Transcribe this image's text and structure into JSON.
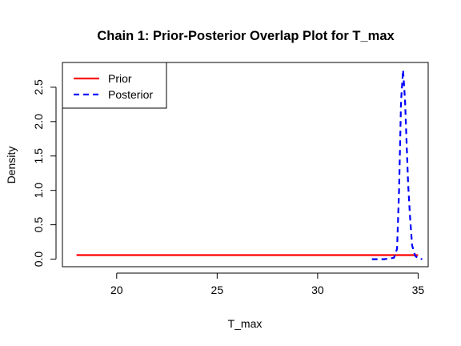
{
  "chart_data": {
    "type": "line",
    "title": "Chain 1: Prior-Posterior Overlap Plot for T_max",
    "xlabel": "T_max",
    "ylabel": "Density",
    "xlim": [
      17.3,
      35.5
    ],
    "ylim": [
      -0.11,
      2.86
    ],
    "x_ticks": [
      20,
      25,
      30,
      35
    ],
    "y_ticks": [
      0.0,
      0.5,
      1.0,
      1.5,
      2.0,
      2.5
    ],
    "x_tick_labels": [
      "20",
      "25",
      "30",
      "35"
    ],
    "y_tick_labels": [
      "0.0",
      "0.5",
      "1.0",
      "1.5",
      "2.0",
      "2.5"
    ],
    "grid": false,
    "legend_position": "top-left",
    "series": [
      {
        "name": "Prior",
        "color": "#ff0000",
        "line_style": "solid",
        "x": [
          18.0,
          35.0
        ],
        "y": [
          0.059,
          0.059
        ]
      },
      {
        "name": "Posterior",
        "color": "#0000ff",
        "line_style": "dashed",
        "x": [
          32.7,
          33.0,
          33.3,
          33.6,
          33.8,
          33.95,
          34.05,
          34.15,
          34.25,
          34.35,
          34.5,
          34.6,
          34.7,
          34.85,
          35.0,
          35.2
        ],
        "y": [
          0.0,
          0.0,
          0.0,
          0.01,
          0.02,
          0.15,
          1.0,
          2.3,
          2.75,
          2.3,
          1.1,
          0.6,
          0.2,
          0.05,
          0.01,
          0.0
        ]
      }
    ]
  }
}
